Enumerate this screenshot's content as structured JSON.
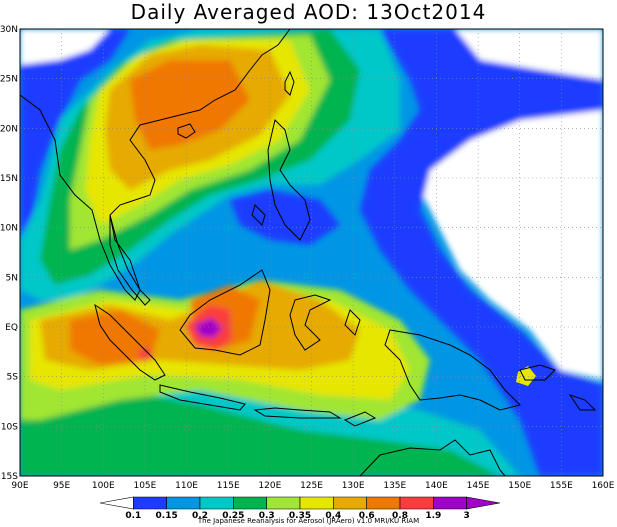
{
  "title": "Daily Averaged AOD: 13Oct2014",
  "lon_ticks": [
    "90E",
    "95E",
    "100E",
    "105E",
    "110E",
    "115E",
    "120E",
    "125E",
    "130E",
    "135E",
    "140E",
    "145E",
    "150E",
    "155E",
    "160E"
  ],
  "lat_ticks": [
    "30N",
    "25N",
    "20N",
    "15N",
    "10N",
    "5N",
    "EQ",
    "5S",
    "10S",
    "15S"
  ],
  "colorbar": {
    "levels": [
      "0.1",
      "0.15",
      "0.2",
      "0.25",
      "0.3",
      "0.35",
      "0.4",
      "0.6",
      "0.8",
      "1.9",
      "3"
    ],
    "colors": [
      "#ffffff",
      "#1e3cff",
      "#0096e6",
      "#00c8c8",
      "#00b450",
      "#a0e632",
      "#e6e600",
      "#e6aa00",
      "#f07800",
      "#fa3c3c",
      "#a000c8",
      "#a000c8"
    ]
  },
  "credit": "The Japanese Reanalysis for Aerosol (JRAero) v1.0 MRI/KU RIAM",
  "map_extent": {
    "lon": [
      90,
      160
    ],
    "lat": [
      -15,
      30
    ]
  }
}
